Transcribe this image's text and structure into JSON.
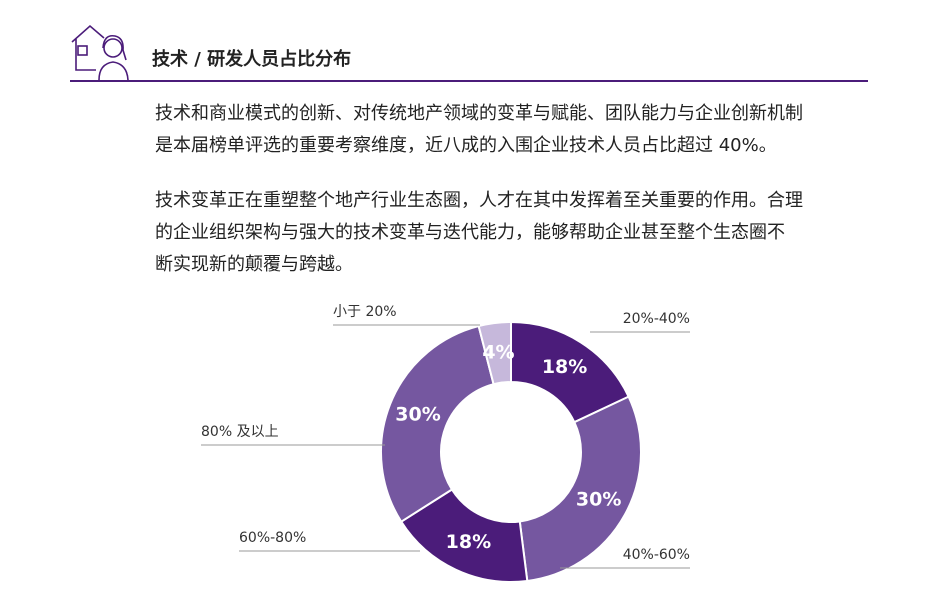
{
  "header": {
    "title": "技术 / 研发人员占比分布"
  },
  "paragraphs": [
    {
      "lines": [
        "技术和商业模式的创新、对传统地产领域的变革与赋能、团队能力与企业创新机制",
        "是本届榜单评选的重要考察维度，近八成的入围企业技术人员占比超过 40%。"
      ]
    },
    {
      "lines": [
        "技术变革正在重塑整个地产行业生态圈，人才在其中发挥着至关重要的作用。合理",
        "的企业组织架构与强大的技术变革与迭代能力，能够帮助企业甚至整个生态圈不",
        "断实现新的颠覆与跨越。"
      ]
    }
  ],
  "chart_data": {
    "type": "donut",
    "categories": [
      "20%-40%",
      "40%-60%",
      "60%-80%",
      "80% 及以上",
      "小于 20%"
    ],
    "values": [
      18,
      30,
      18,
      30,
      4
    ],
    "value_labels": [
      "18%",
      "30%",
      "18%",
      "30%",
      "4%"
    ],
    "colors": [
      "#4b1c7a",
      "#7557a0",
      "#4b1c7a",
      "#7557a0",
      "#c6b8db"
    ]
  }
}
